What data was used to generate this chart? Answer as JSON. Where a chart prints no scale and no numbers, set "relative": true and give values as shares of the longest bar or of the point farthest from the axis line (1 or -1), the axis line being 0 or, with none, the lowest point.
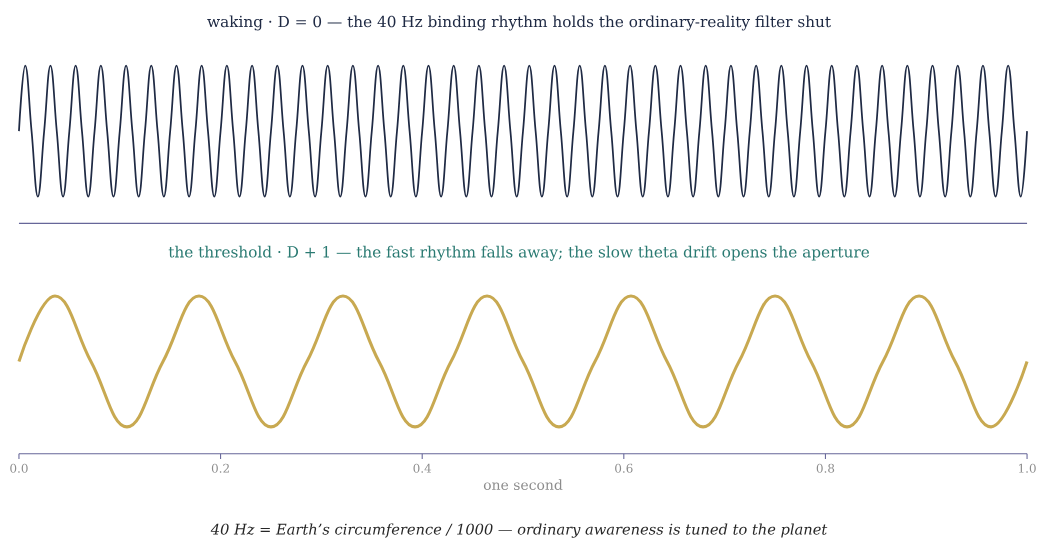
{
  "chart_data": [
    {
      "type": "line",
      "title": "waking · D = 0 — the 40 Hz binding rhythm holds the ordinary-reality filter shut",
      "relative": true,
      "xlim": [
        0,
        1
      ],
      "x": [
        0,
        0.00625,
        0.0125,
        0.01875,
        0.025,
        0.03125,
        0.0375,
        0.04375,
        0.05,
        0.05625,
        0.0625,
        0.06875,
        0.075,
        0.08125,
        0.0875,
        0.09375,
        0.1,
        0.10625,
        0.1125,
        0.11875,
        0.125,
        0.13125,
        0.1375,
        0.14375,
        0.15,
        0.15625,
        0.1625,
        0.16875,
        0.175,
        0.18125,
        0.1875,
        0.19375,
        0.2,
        0.20625,
        0.2125,
        0.21875,
        0.225,
        0.23125,
        0.2375,
        0.24375,
        0.25,
        0.25625,
        0.2625,
        0.26875,
        0.275,
        0.28125,
        0.2875,
        0.29375,
        0.3,
        0.30625,
        0.3125,
        0.31875,
        0.325,
        0.33125,
        0.3375,
        0.34375,
        0.35,
        0.35625,
        0.3625,
        0.36875,
        0.375,
        0.38125,
        0.3875,
        0.39375,
        0.4,
        0.40625,
        0.4125,
        0.41875,
        0.425,
        0.43125,
        0.4375,
        0.44375,
        0.45,
        0.45625,
        0.4625,
        0.46875,
        0.475,
        0.48125,
        0.4875,
        0.49375,
        0.5,
        0.50625,
        0.5125,
        0.51875,
        0.525,
        0.53125,
        0.5375,
        0.54375,
        0.55,
        0.55625,
        0.5625,
        0.56875,
        0.575,
        0.58125,
        0.5875,
        0.59375,
        0.6,
        0.60625,
        0.6125,
        0.61875,
        0.625,
        0.63125,
        0.6375,
        0.64375,
        0.65,
        0.65625,
        0.6625,
        0.66875,
        0.675,
        0.68125,
        0.6875,
        0.69375,
        0.7,
        0.70625,
        0.7125,
        0.71875,
        0.725,
        0.73125,
        0.7375,
        0.74375,
        0.75,
        0.75625,
        0.7625,
        0.76875,
        0.775,
        0.78125,
        0.7875,
        0.79375,
        0.8,
        0.80625,
        0.8125,
        0.81875,
        0.825,
        0.83125,
        0.8375,
        0.84375,
        0.85,
        0.85625,
        0.8625,
        0.86875,
        0.875,
        0.88125,
        0.8875,
        0.89375,
        0.9,
        0.90625,
        0.9125,
        0.91875,
        0.925,
        0.93125,
        0.9375,
        0.94375,
        0.95,
        0.95625,
        0.9625,
        0.96875,
        0.975,
        0.98125,
        0.9875,
        0.99375,
        1
      ],
      "series": [
        {
          "color": "#1f2a44",
          "values": [
            0.585,
            1,
            0.585,
            0.17,
            0.585,
            1,
            0.585,
            0.17,
            0.585,
            1,
            0.585,
            0.17,
            0.585,
            1,
            0.585,
            0.17,
            0.585,
            1,
            0.585,
            0.17,
            0.585,
            1,
            0.585,
            0.17,
            0.585,
            1,
            0.585,
            0.17,
            0.585,
            1,
            0.585,
            0.17,
            0.585,
            1,
            0.585,
            0.17,
            0.585,
            1,
            0.585,
            0.17,
            0.585,
            1,
            0.585,
            0.17,
            0.585,
            1,
            0.585,
            0.17,
            0.585,
            1,
            0.585,
            0.17,
            0.585,
            1,
            0.585,
            0.17,
            0.585,
            1,
            0.585,
            0.17,
            0.585,
            1,
            0.585,
            0.17,
            0.585,
            1,
            0.585,
            0.17,
            0.585,
            1,
            0.585,
            0.17,
            0.585,
            1,
            0.585,
            0.17,
            0.585,
            1,
            0.585,
            0.17,
            0.585,
            1,
            0.585,
            0.17,
            0.585,
            1,
            0.585,
            0.17,
            0.585,
            1,
            0.585,
            0.17,
            0.585,
            1,
            0.585,
            0.17,
            0.585,
            1,
            0.585,
            0.17,
            0.585,
            1,
            0.585,
            0.17,
            0.585,
            1,
            0.585,
            0.17,
            0.585,
            1,
            0.585,
            0.17,
            0.585,
            1,
            0.585,
            0.17,
            0.585,
            1,
            0.585,
            0.17,
            0.585,
            1,
            0.585,
            0.17,
            0.585,
            1,
            0.585,
            0.17,
            0.585,
            1,
            0.585,
            0.17,
            0.585,
            1,
            0.585,
            0.17,
            0.585,
            1,
            0.585,
            0.17,
            0.585,
            1,
            0.585,
            0.17,
            0.585,
            1,
            0.585,
            0.17,
            0.585,
            1,
            0.585,
            0.17,
            0.585,
            1,
            0.585,
            0.17,
            0.585,
            1,
            0.585,
            0.17,
            0.585
          ]
        }
      ]
    },
    {
      "type": "line",
      "title": "the threshold · D + 1 — the fast rhythm falls away; the slow theta drift opens the aperture",
      "xlabel": "one second",
      "annotations": [
        "40 Hz = Earth’s circumference / 1000 — ordinary awareness is tuned to the planet"
      ],
      "relative": true,
      "xlim": [
        0,
        1
      ],
      "xticks": [
        {
          "value": 0,
          "label": "0.0"
        },
        {
          "value": 0.2,
          "label": "0.2"
        },
        {
          "value": 0.4,
          "label": "0.4"
        },
        {
          "value": 0.6,
          "label": "0.6"
        },
        {
          "value": 0.8,
          "label": "0.8"
        },
        {
          "value": 1,
          "label": "1.0"
        }
      ],
      "x": [
        0,
        0.0357,
        0.0714,
        0.1071,
        0.1429,
        0.1786,
        0.2143,
        0.25,
        0.2857,
        0.3214,
        0.3571,
        0.3929,
        0.4286,
        0.4643,
        0.5,
        0.5357,
        0.5714,
        0.6071,
        0.6429,
        0.6786,
        0.7143,
        0.75,
        0.7857,
        0.8214,
        0.8571,
        0.8929,
        0.9286,
        0.9643,
        1
      ],
      "series": [
        {
          "color": "#c8a951",
          "values": [
            0.585,
            1,
            0.585,
            0.17,
            0.585,
            1,
            0.585,
            0.17,
            0.585,
            1,
            0.585,
            0.17,
            0.585,
            1,
            0.585,
            0.17,
            0.585,
            1,
            0.585,
            0.17,
            0.585,
            1,
            0.585,
            0.17,
            0.585,
            1,
            0.585,
            0.17,
            0.585
          ]
        }
      ]
    }
  ]
}
